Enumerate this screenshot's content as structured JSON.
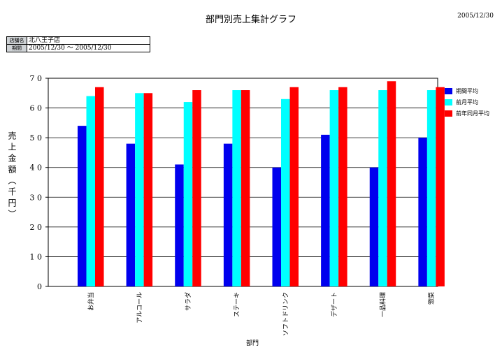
{
  "header": {
    "title": "部門別売上集計グラフ",
    "date": "2005/12/30"
  },
  "info": {
    "store_label": "店舗名",
    "store_value": "北八王子店",
    "period_label": "期間",
    "period_value": "2005/12/30 〜 2005/12/30"
  },
  "chart_data": {
    "type": "bar",
    "ylabel": "売上金額（千円）",
    "xlabel": "部門",
    "ylim": [
      0,
      7
    ],
    "yticks": [
      "0",
      "1 0",
      "2 0",
      "3 0",
      "4 0",
      "5 0",
      "6 0",
      "7 0"
    ],
    "grid": true,
    "legend_position": "right",
    "categories": [
      "お弁当",
      "アルコール",
      "サラダ",
      "ステーキ",
      "ソフトドリンク",
      "デザート",
      "一品料理",
      "惣菜"
    ],
    "series": [
      {
        "name": "期間平均",
        "color": "#0000ee",
        "values": [
          5.4,
          4.8,
          4.1,
          4.8,
          4.0,
          5.1,
          4.0,
          5.0
        ]
      },
      {
        "name": "前月平均",
        "color": "#00ffff",
        "values": [
          6.4,
          6.5,
          6.2,
          6.6,
          6.3,
          6.6,
          6.6,
          6.6
        ]
      },
      {
        "name": "前年同月平均",
        "color": "#ff0000",
        "values": [
          6.7,
          6.5,
          6.6,
          6.6,
          6.7,
          6.7,
          6.9,
          6.7
        ]
      }
    ]
  }
}
